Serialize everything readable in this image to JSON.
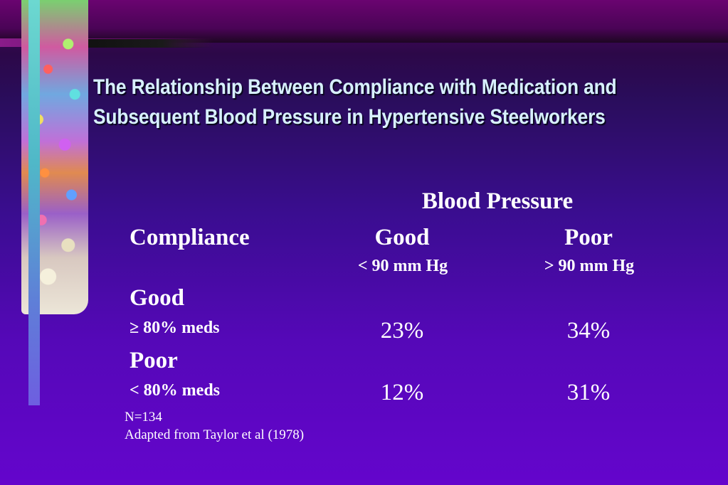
{
  "slide": {
    "title_line1": "The Relationship Between Compliance with Medication and",
    "title_line2": "Subsequent Blood Pressure in Hypertensive Steelworkers"
  },
  "table": {
    "group_header": "Blood Pressure",
    "row_header": "Compliance",
    "columns": [
      {
        "label": "Good",
        "sublabel": "< 90 mm Hg"
      },
      {
        "label": "Poor",
        "sublabel": "> 90 mm Hg"
      }
    ],
    "rows": [
      {
        "label": "Good",
        "sublabel": "≥ 80% meds",
        "values": [
          "23%",
          "34%"
        ]
      },
      {
        "label": "Poor",
        "sublabel": "< 80% meds",
        "values": [
          "12%",
          "31%"
        ]
      }
    ]
  },
  "notes": {
    "sample_size": "N=134",
    "source": "Adapted from Taylor et al (1978)"
  },
  "colors": {
    "title": "#d8f0ff",
    "text": "#ffffff",
    "background_top": "#5a0468",
    "background_bottom": "#6405cc"
  },
  "decorations": [
    "floral-collage-strip",
    "teal-vertical-bar"
  ]
}
